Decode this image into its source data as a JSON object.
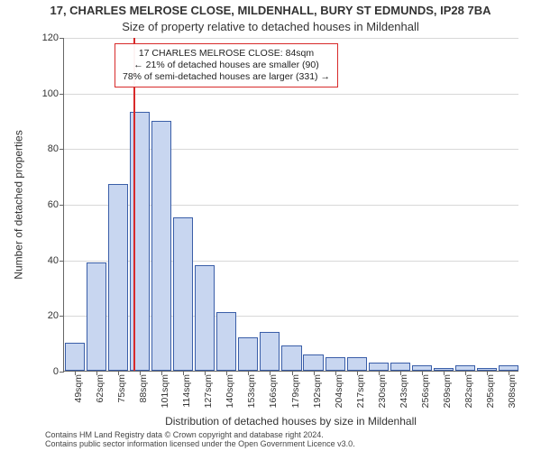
{
  "title_line1": "17, CHARLES MELROSE CLOSE, MILDENHALL, BURY ST EDMUNDS, IP28 7BA",
  "title_line2": "Size of property relative to detached houses in Mildenhall",
  "chart": {
    "type": "histogram",
    "ylabel": "Number of detached properties",
    "xlabel": "Distribution of detached houses by size in Mildenhall",
    "ylim": [
      0,
      120
    ],
    "ytick_step": 20,
    "yticks": [
      0,
      20,
      40,
      60,
      80,
      100,
      120
    ],
    "x_categories": [
      "49sqm",
      "62sqm",
      "75sqm",
      "88sqm",
      "101sqm",
      "114sqm",
      "127sqm",
      "140sqm",
      "153sqm",
      "166sqm",
      "179sqm",
      "192sqm",
      "204sqm",
      "217sqm",
      "230sqm",
      "243sqm",
      "256sqm",
      "269sqm",
      "282sqm",
      "295sqm",
      "308sqm"
    ],
    "values": [
      10,
      39,
      67,
      93,
      90,
      55,
      38,
      21,
      12,
      14,
      9,
      6,
      5,
      5,
      3,
      3,
      2,
      1,
      2,
      1,
      2
    ],
    "bar_fill": "#c8d6f0",
    "bar_stroke": "#3a5ea8",
    "grid_color": "#d8d8d8",
    "background_color": "#ffffff",
    "marker_value_sqm": 84,
    "marker_color": "#d82a2a",
    "annotation": {
      "line1": "17 CHARLES MELROSE CLOSE: 84sqm",
      "line2": "← 21% of detached houses are smaller (90)",
      "line3": "78% of semi-detached houses are larger (331) →"
    }
  },
  "footer_line1": "Contains HM Land Registry data © Crown copyright and database right 2024.",
  "footer_line2": "Contains public sector information licensed under the Open Government Licence v3.0."
}
